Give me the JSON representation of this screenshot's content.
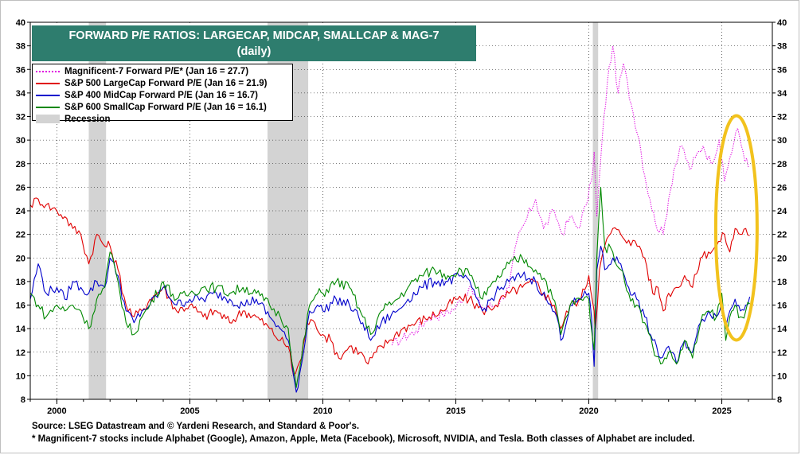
{
  "chart_data": {
    "type": "line",
    "title_line1": "FORWARD P/E RATIOS: LARGECAP, MIDCAP, SMALLCAP & MAG-7",
    "title_line2": "(daily)",
    "xlim": [
      1999.0,
      2026.9
    ],
    "ylim": [
      8,
      40
    ],
    "x_ticks": [
      2000,
      2005,
      2010,
      2015,
      2020,
      2025
    ],
    "x_tick_labels": [
      "2000",
      "2005",
      "2010",
      "2015",
      "2020",
      "2025"
    ],
    "y_ticks": [
      8,
      10,
      12,
      14,
      16,
      18,
      20,
      22,
      24,
      26,
      28,
      30,
      32,
      34,
      36,
      38,
      40
    ],
    "y_tick_labels": [
      "8",
      "10",
      "12",
      "14",
      "16",
      "18",
      "20",
      "22",
      "24",
      "26",
      "28",
      "30",
      "32",
      "34",
      "36",
      "38",
      "40"
    ],
    "recessions": [
      [
        2001.2,
        2001.85
      ],
      [
        2007.92,
        2009.45
      ],
      [
        2020.15,
        2020.35
      ]
    ],
    "recession_label": "Recession",
    "series": [
      {
        "name": "Magnificent-7 Forward P/E* (Jan 16 = 27.7)",
        "color": "#e000e0",
        "dash": "dotted",
        "x": [
          2012.6,
          2013.0,
          2013.5,
          2014.0,
          2014.5,
          2015.0,
          2015.5,
          2016.0,
          2016.5,
          2017.0,
          2017.3,
          2017.6,
          2018.0,
          2018.3,
          2018.7,
          2019.0,
          2019.3,
          2019.6,
          2019.9,
          2020.1,
          2020.2,
          2020.3,
          2020.5,
          2020.7,
          2020.9,
          2021.1,
          2021.3,
          2021.6,
          2021.9,
          2022.1,
          2022.3,
          2022.5,
          2022.8,
          2023.0,
          2023.2,
          2023.5,
          2023.8,
          2024.0,
          2024.3,
          2024.6,
          2024.9,
          2025.1,
          2025.3,
          2025.6,
          2025.8,
          2026.0
        ],
        "y": [
          12.6,
          13.2,
          13.8,
          15.0,
          15.2,
          15.8,
          17.5,
          15.8,
          16.0,
          17.5,
          21.5,
          23.0,
          25.0,
          22.5,
          24.0,
          22.0,
          23.5,
          22.5,
          24.5,
          26.5,
          29.0,
          23.5,
          30.0,
          35.0,
          38.0,
          34.0,
          36.5,
          33.0,
          30.0,
          27.0,
          25.0,
          23.0,
          22.0,
          25.0,
          27.5,
          29.5,
          27.5,
          28.5,
          29.5,
          28.0,
          30.0,
          26.5,
          28.5,
          31.0,
          29.0,
          27.7
        ]
      },
      {
        "name": "S&P 500 LargeCap Forward P/E (Jan 16 = 21.9)",
        "color": "#e00000",
        "dash": "solid",
        "x": [
          1999.0,
          1999.3,
          1999.6,
          2000.0,
          2000.3,
          2000.6,
          2000.9,
          2001.2,
          2001.5,
          2001.8,
          2002.0,
          2002.3,
          2002.6,
          2002.9,
          2003.2,
          2003.5,
          2004.0,
          2004.5,
          2005.0,
          2005.5,
          2006.0,
          2006.5,
          2007.0,
          2007.5,
          2008.0,
          2008.4,
          2008.7,
          2008.9,
          2009.2,
          2009.4,
          2009.7,
          2010.0,
          2010.3,
          2010.6,
          2011.0,
          2011.4,
          2011.7,
          2012.0,
          2012.5,
          2013.0,
          2013.5,
          2014.0,
          2014.5,
          2015.0,
          2015.5,
          2016.0,
          2016.5,
          2017.0,
          2017.5,
          2018.0,
          2018.3,
          2018.7,
          2018.95,
          2019.3,
          2019.7,
          2020.0,
          2020.2,
          2020.25,
          2020.4,
          2020.6,
          2020.9,
          2021.2,
          2021.5,
          2021.9,
          2022.1,
          2022.4,
          2022.6,
          2022.8,
          2023.0,
          2023.3,
          2023.6,
          2023.9,
          2024.2,
          2024.5,
          2024.8,
          2025.1,
          2025.3,
          2025.5,
          2025.7,
          2025.9,
          2026.05
        ],
        "y": [
          24.5,
          25.0,
          24.5,
          24.0,
          23.5,
          22.5,
          22.0,
          19.5,
          22.0,
          21.0,
          21.0,
          19.0,
          16.0,
          15.0,
          15.5,
          16.5,
          17.5,
          15.5,
          16.0,
          15.0,
          15.5,
          14.5,
          15.5,
          15.0,
          14.0,
          13.0,
          12.5,
          10.0,
          11.5,
          14.5,
          14.5,
          13.5,
          13.0,
          11.5,
          12.5,
          12.0,
          11.0,
          12.0,
          13.0,
          14.0,
          14.5,
          15.0,
          15.5,
          16.5,
          16.5,
          15.5,
          16.0,
          17.0,
          17.5,
          18.0,
          17.0,
          16.0,
          14.0,
          16.0,
          16.5,
          18.5,
          15.5,
          14.0,
          19.0,
          21.0,
          22.5,
          22.0,
          21.5,
          21.0,
          20.0,
          17.0,
          17.5,
          15.5,
          17.0,
          17.5,
          18.5,
          17.5,
          20.0,
          20.5,
          21.0,
          22.0,
          20.5,
          22.5,
          22.0,
          22.5,
          21.9
        ]
      },
      {
        "name": "S&P 400 MidCap Forward P/E (Jan 16 = 16.7)",
        "color": "#0000cc",
        "dash": "solid",
        "x": [
          1999.0,
          1999.3,
          1999.6,
          2000.0,
          2000.3,
          2000.6,
          2000.9,
          2001.2,
          2001.5,
          2001.8,
          2002.0,
          2002.3,
          2002.6,
          2002.9,
          2003.2,
          2003.5,
          2004.0,
          2004.5,
          2005.0,
          2005.5,
          2006.0,
          2006.5,
          2007.0,
          2007.5,
          2008.0,
          2008.4,
          2008.7,
          2008.9,
          2009.0,
          2009.2,
          2009.5,
          2009.8,
          2010.0,
          2010.5,
          2011.0,
          2011.5,
          2011.8,
          2012.2,
          2012.8,
          2013.2,
          2013.7,
          2014.2,
          2014.7,
          2015.2,
          2015.6,
          2016.0,
          2016.5,
          2017.0,
          2017.5,
          2018.0,
          2018.4,
          2018.8,
          2018.95,
          2019.3,
          2019.7,
          2020.0,
          2020.1,
          2020.2,
          2020.3,
          2020.45,
          2020.6,
          2020.9,
          2021.2,
          2021.5,
          2021.8,
          2022.1,
          2022.4,
          2022.7,
          2023.0,
          2023.3,
          2023.6,
          2023.9,
          2024.2,
          2024.5,
          2024.8,
          2025.0,
          2025.15,
          2025.3,
          2025.5,
          2025.7,
          2025.9,
          2026.05
        ],
        "y": [
          16.5,
          19.5,
          17.0,
          17.5,
          16.5,
          18.0,
          17.5,
          17.0,
          18.0,
          17.5,
          20.0,
          18.5,
          15.5,
          14.5,
          15.5,
          16.0,
          17.5,
          16.0,
          16.5,
          16.5,
          17.0,
          16.5,
          16.0,
          16.5,
          15.0,
          14.0,
          13.0,
          10.0,
          8.6,
          11.0,
          15.5,
          16.0,
          15.5,
          16.5,
          16.0,
          14.5,
          13.0,
          14.5,
          15.5,
          16.5,
          17.5,
          18.0,
          18.0,
          18.5,
          17.5,
          15.5,
          17.0,
          18.0,
          18.5,
          18.0,
          16.5,
          15.0,
          13.0,
          16.0,
          16.5,
          17.0,
          15.0,
          10.8,
          19.0,
          21.0,
          19.0,
          20.0,
          19.5,
          17.5,
          16.5,
          15.0,
          13.0,
          11.5,
          12.5,
          11.0,
          13.0,
          12.0,
          14.5,
          15.5,
          15.0,
          16.5,
          14.0,
          15.5,
          16.5,
          15.5,
          16.0,
          16.7
        ]
      },
      {
        "name": "S&P 600 SmallCap Forward P/E (Jan 16 = 16.1)",
        "color": "#008800",
        "dash": "solid",
        "x": [
          1999.0,
          1999.3,
          1999.6,
          2000.0,
          2000.3,
          2000.6,
          2000.9,
          2001.2,
          2001.5,
          2001.8,
          2002.0,
          2002.3,
          2002.6,
          2002.9,
          2003.2,
          2003.5,
          2004.0,
          2004.5,
          2005.0,
          2005.5,
          2006.0,
          2006.5,
          2007.0,
          2007.5,
          2008.0,
          2008.4,
          2008.7,
          2008.9,
          2009.0,
          2009.2,
          2009.5,
          2009.8,
          2010.0,
          2010.5,
          2011.0,
          2011.5,
          2011.8,
          2012.2,
          2012.8,
          2013.2,
          2013.7,
          2014.2,
          2014.7,
          2015.2,
          2015.6,
          2016.0,
          2016.5,
          2017.0,
          2017.5,
          2018.0,
          2018.4,
          2018.8,
          2018.95,
          2019.3,
          2019.7,
          2020.0,
          2020.1,
          2020.2,
          2020.3,
          2020.45,
          2020.6,
          2020.9,
          2021.2,
          2021.5,
          2021.8,
          2022.1,
          2022.4,
          2022.7,
          2023.0,
          2023.3,
          2023.6,
          2023.9,
          2024.2,
          2024.5,
          2024.8,
          2025.0,
          2025.15,
          2025.3,
          2025.5,
          2025.7,
          2025.9,
          2026.05
        ],
        "y": [
          17.0,
          16.0,
          15.0,
          16.0,
          15.5,
          16.0,
          15.5,
          14.0,
          16.5,
          17.5,
          20.5,
          18.0,
          14.5,
          13.5,
          15.0,
          16.0,
          18.0,
          16.5,
          17.0,
          17.5,
          17.5,
          17.0,
          17.5,
          17.0,
          16.0,
          15.0,
          14.0,
          10.5,
          9.0,
          11.5,
          16.0,
          17.0,
          17.0,
          18.0,
          17.5,
          15.0,
          13.5,
          15.5,
          16.5,
          17.5,
          18.5,
          19.0,
          18.5,
          19.0,
          18.5,
          16.5,
          18.0,
          19.5,
          20.0,
          19.0,
          18.0,
          15.5,
          13.5,
          16.0,
          16.5,
          16.5,
          14.0,
          12.2,
          20.0,
          26.0,
          21.0,
          20.5,
          19.0,
          17.0,
          16.0,
          14.5,
          12.5,
          11.0,
          12.0,
          11.0,
          13.0,
          11.5,
          14.5,
          15.5,
          15.0,
          17.0,
          13.0,
          15.0,
          16.0,
          15.0,
          15.5,
          16.1
        ]
      }
    ],
    "annotation": "yellow ellipse highlighting recent period",
    "annotation_color": "#f2c21d"
  },
  "legend": {
    "items": [
      {
        "label": "Magnificent-7 Forward P/E* (Jan 16 = 27.7)",
        "color": "#e000e0",
        "style": "dotted"
      },
      {
        "label": "S&P 500 LargeCap Forward P/E (Jan 16 = 21.9)",
        "color": "#e00000",
        "style": "solid"
      },
      {
        "label": "S&P 400 MidCap Forward P/E (Jan 16 = 16.7)",
        "color": "#0000cc",
        "style": "solid"
      },
      {
        "label": "S&P 600 SmallCap Forward P/E (Jan 16 = 16.1)",
        "color": "#008800",
        "style": "solid"
      }
    ],
    "recession_label": "Recession"
  },
  "title": {
    "line1": "FORWARD P/E RATIOS: LARGECAP, MIDCAP, SMALLCAP & MAG-7",
    "line2": "(daily)",
    "bg_color": "#2e7d6e"
  },
  "footer": {
    "source": "Source: LSEG Datastream and © Yardeni Research, and Standard & Poor's.",
    "note": "* Magnificent-7 stocks include Alphabet (Google), Amazon, Apple, Meta (Facebook), Microsoft, NVIDIA, and Tesla. Both classes of Alphabet are included."
  }
}
